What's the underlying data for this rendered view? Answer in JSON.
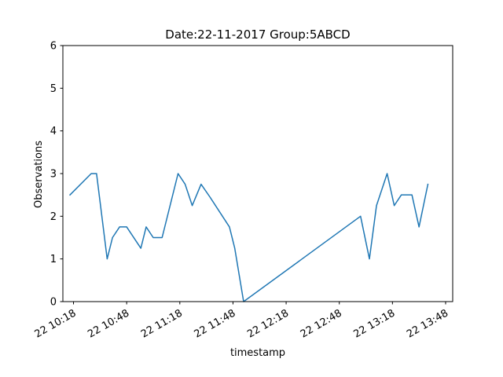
{
  "chart_data": {
    "type": "line",
    "title": "Date:22-11-2017  Group:5ABCD",
    "xlabel": "timestamp",
    "ylabel": "Observations",
    "ylim": [
      0,
      6
    ],
    "yticks": [
      0,
      1,
      2,
      3,
      4,
      5,
      6
    ],
    "xlim": [
      "10:12",
      "13:52"
    ],
    "xticks": [
      {
        "time": "10:18",
        "label": "22 10:18"
      },
      {
        "time": "10:48",
        "label": "22 10:48"
      },
      {
        "time": "11:18",
        "label": "22 11:18"
      },
      {
        "time": "11:48",
        "label": "22 11:48"
      },
      {
        "time": "12:18",
        "label": "22 12:18"
      },
      {
        "time": "12:48",
        "label": "22 12:48"
      },
      {
        "time": "13:18",
        "label": "22 13:18"
      },
      {
        "time": "13:48",
        "label": "22 13:48"
      }
    ],
    "grid": false,
    "line_color": "#1f77b4",
    "series": [
      {
        "x": [
          "10:16",
          "10:28",
          "10:31",
          "10:37",
          "10:40",
          "10:44",
          "10:48",
          "10:56",
          "10:59",
          "11:03",
          "11:08",
          "11:17",
          "11:21",
          "11:25",
          "11:30",
          "11:35",
          "11:46",
          "11:49",
          "11:54",
          "13:00",
          "13:05",
          "13:09",
          "13:15",
          "13:19",
          "13:23",
          "13:29",
          "13:33",
          "13:38"
        ],
        "y": [
          2.5,
          3.0,
          3.0,
          1.0,
          1.5,
          1.75,
          1.75,
          1.25,
          1.75,
          1.5,
          1.5,
          3.0,
          2.75,
          2.25,
          2.75,
          2.45,
          1.75,
          1.25,
          0.0,
          2.0,
          1.0,
          2.25,
          3.0,
          2.25,
          2.5,
          2.5,
          1.75,
          2.75
        ]
      }
    ]
  }
}
